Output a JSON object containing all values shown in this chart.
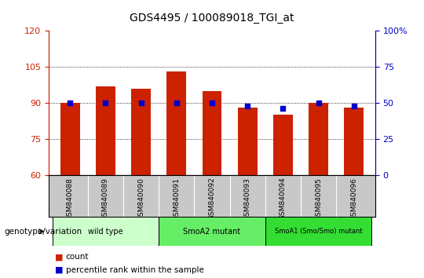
{
  "title": "GDS4495 / 100089018_TGI_at",
  "samples": [
    "GSM840088",
    "GSM840089",
    "GSM840090",
    "GSM840091",
    "GSM840092",
    "GSM840093",
    "GSM840094",
    "GSM840095",
    "GSM840096"
  ],
  "counts": [
    90,
    97,
    96,
    103,
    95,
    88,
    85,
    90,
    88
  ],
  "percentile_ranks": [
    50,
    50,
    50,
    50,
    50,
    48,
    46,
    50,
    48
  ],
  "ylim_left": [
    60,
    120
  ],
  "ylim_right": [
    0,
    100
  ],
  "yticks_left": [
    60,
    75,
    90,
    105,
    120
  ],
  "yticks_right": [
    0,
    25,
    50,
    75,
    100
  ],
  "bar_color": "#CC2200",
  "dot_color": "#0000CC",
  "bg_plot": "#FFFFFF",
  "bg_xticklabels": "#C8C8C8",
  "groups": [
    {
      "label": "wild type",
      "samples": [
        0,
        1,
        2
      ],
      "color": "#CCFFCC"
    },
    {
      "label": "SmoA2 mutant",
      "samples": [
        3,
        4,
        5
      ],
      "color": "#66EE66"
    },
    {
      "label": "SmoA1 (Smo/Smo) mutant",
      "samples": [
        6,
        7,
        8
      ],
      "color": "#33DD33"
    }
  ],
  "legend_count_label": "count",
  "legend_pct_label": "percentile rank within the sample",
  "xlabel_label": "genotype/variation",
  "title_fontsize": 10,
  "bar_width": 0.55
}
